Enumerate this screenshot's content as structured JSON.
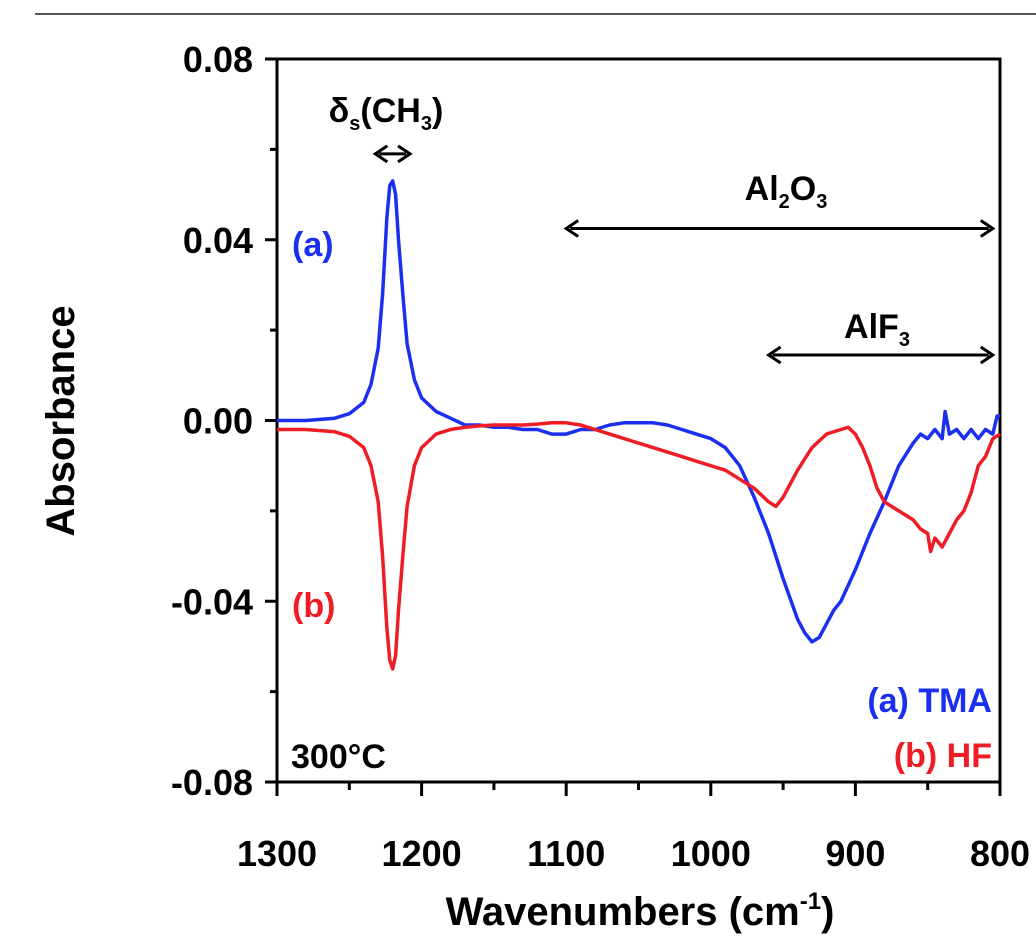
{
  "chart_data": {
    "type": "line",
    "xlabel": "Wavenumbers (cm",
    "xlabel_sup": "-1",
    "xlabel_tail": ")",
    "ylabel": "Absorbance",
    "xlim": [
      1300,
      800
    ],
    "ylim": [
      -0.08,
      0.08
    ],
    "x_reversed": true,
    "x_ticks": [
      1300,
      1200,
      1100,
      1000,
      900,
      800
    ],
    "x_tick_labels": [
      "1300",
      "1200",
      "1100",
      "1000",
      "900",
      "800"
    ],
    "x_minor_ticks": [
      1250,
      1150,
      1050,
      950,
      850
    ],
    "y_ticks": [
      0.08,
      0.04,
      0.0,
      -0.04,
      -0.08
    ],
    "y_tick_labels": [
      "0.08",
      "0.04",
      "0.00",
      "-0.04",
      "-0.08"
    ],
    "y_minor_ticks": [
      0.06,
      0.02,
      -0.02,
      -0.06
    ],
    "grid": false,
    "legend_position": "bottom-right",
    "series": [
      {
        "name": "(a) TMA",
        "color": "#1a2ff0",
        "x": [
          1300,
          1280,
          1260,
          1250,
          1240,
          1235,
          1230,
          1227,
          1224,
          1222,
          1220,
          1218,
          1216,
          1213,
          1210,
          1205,
          1200,
          1190,
          1180,
          1170,
          1160,
          1150,
          1140,
          1130,
          1120,
          1110,
          1100,
          1090,
          1080,
          1070,
          1060,
          1050,
          1040,
          1030,
          1020,
          1010,
          1000,
          990,
          980,
          970,
          960,
          950,
          940,
          935,
          930,
          925,
          920,
          915,
          910,
          900,
          890,
          880,
          870,
          860,
          855,
          850,
          845,
          840,
          838,
          835,
          830,
          825,
          820,
          815,
          810,
          805,
          802,
          800
        ],
        "y": [
          0.0,
          0.0,
          0.0005,
          0.0015,
          0.004,
          0.008,
          0.016,
          0.028,
          0.045,
          0.052,
          0.053,
          0.05,
          0.04,
          0.028,
          0.017,
          0.009,
          0.005,
          0.002,
          0.0005,
          -0.001,
          -0.001,
          -0.0015,
          -0.0015,
          -0.002,
          -0.002,
          -0.003,
          -0.003,
          -0.002,
          -0.002,
          -0.001,
          -0.0005,
          -0.0005,
          -0.0005,
          -0.001,
          -0.002,
          -0.003,
          -0.004,
          -0.006,
          -0.01,
          -0.017,
          -0.025,
          -0.035,
          -0.044,
          -0.047,
          -0.049,
          -0.048,
          -0.045,
          -0.042,
          -0.04,
          -0.033,
          -0.025,
          -0.018,
          -0.01,
          -0.005,
          -0.003,
          -0.004,
          -0.002,
          -0.004,
          0.002,
          -0.003,
          -0.002,
          -0.004,
          -0.002,
          -0.004,
          -0.002,
          -0.003,
          0.001,
          0.001
        ]
      },
      {
        "name": "(b) HF",
        "color": "#ee1c24",
        "x": [
          1300,
          1280,
          1260,
          1250,
          1240,
          1235,
          1230,
          1227,
          1224,
          1222,
          1220,
          1218,
          1216,
          1213,
          1210,
          1205,
          1200,
          1190,
          1180,
          1170,
          1160,
          1150,
          1140,
          1130,
          1120,
          1110,
          1100,
          1090,
          1080,
          1070,
          1060,
          1050,
          1040,
          1030,
          1020,
          1010,
          1000,
          990,
          980,
          970,
          960,
          955,
          950,
          940,
          930,
          920,
          910,
          905,
          900,
          895,
          890,
          885,
          880,
          875,
          870,
          860,
          855,
          850,
          848,
          845,
          840,
          835,
          830,
          825,
          820,
          815,
          810,
          805,
          800
        ],
        "y": [
          -0.002,
          -0.002,
          -0.0025,
          -0.0035,
          -0.006,
          -0.01,
          -0.018,
          -0.03,
          -0.046,
          -0.053,
          -0.055,
          -0.052,
          -0.042,
          -0.03,
          -0.019,
          -0.01,
          -0.006,
          -0.003,
          -0.002,
          -0.0015,
          -0.0012,
          -0.001,
          -0.001,
          -0.001,
          -0.0008,
          -0.0005,
          -0.0005,
          -0.001,
          -0.002,
          -0.003,
          -0.004,
          -0.005,
          -0.006,
          -0.007,
          -0.008,
          -0.009,
          -0.01,
          -0.011,
          -0.013,
          -0.015,
          -0.018,
          -0.019,
          -0.017,
          -0.011,
          -0.006,
          -0.003,
          -0.002,
          -0.0015,
          -0.003,
          -0.006,
          -0.01,
          -0.015,
          -0.018,
          -0.019,
          -0.02,
          -0.022,
          -0.024,
          -0.025,
          -0.029,
          -0.026,
          -0.028,
          -0.025,
          -0.022,
          -0.02,
          -0.016,
          -0.01,
          -0.008,
          -0.004,
          -0.003
        ]
      }
    ],
    "annotations": {
      "ch3": {
        "label": "δ",
        "sub1": "s",
        "mid": "(CH",
        "sub2": "3",
        "tail": ")",
        "x_from": 1232,
        "x_to": 1208,
        "y": 0.059
      },
      "al2o3": {
        "label1": "Al",
        "sub1": "2",
        "label2": "O",
        "sub2": "3",
        "x_from": 1100,
        "x_to": 805,
        "y": 0.0425
      },
      "alf3": {
        "label": "AlF",
        "sub": "3",
        "x_from": 960,
        "x_to": 805,
        "y": 0.0145
      },
      "series_a_tag": "(a)",
      "series_b_tag": "(b)",
      "legend_a_tag": "(a)",
      "legend_a_name": "TMA",
      "legend_b_tag": "(b)",
      "legend_b_name": "HF",
      "temperature": "300°C"
    }
  }
}
